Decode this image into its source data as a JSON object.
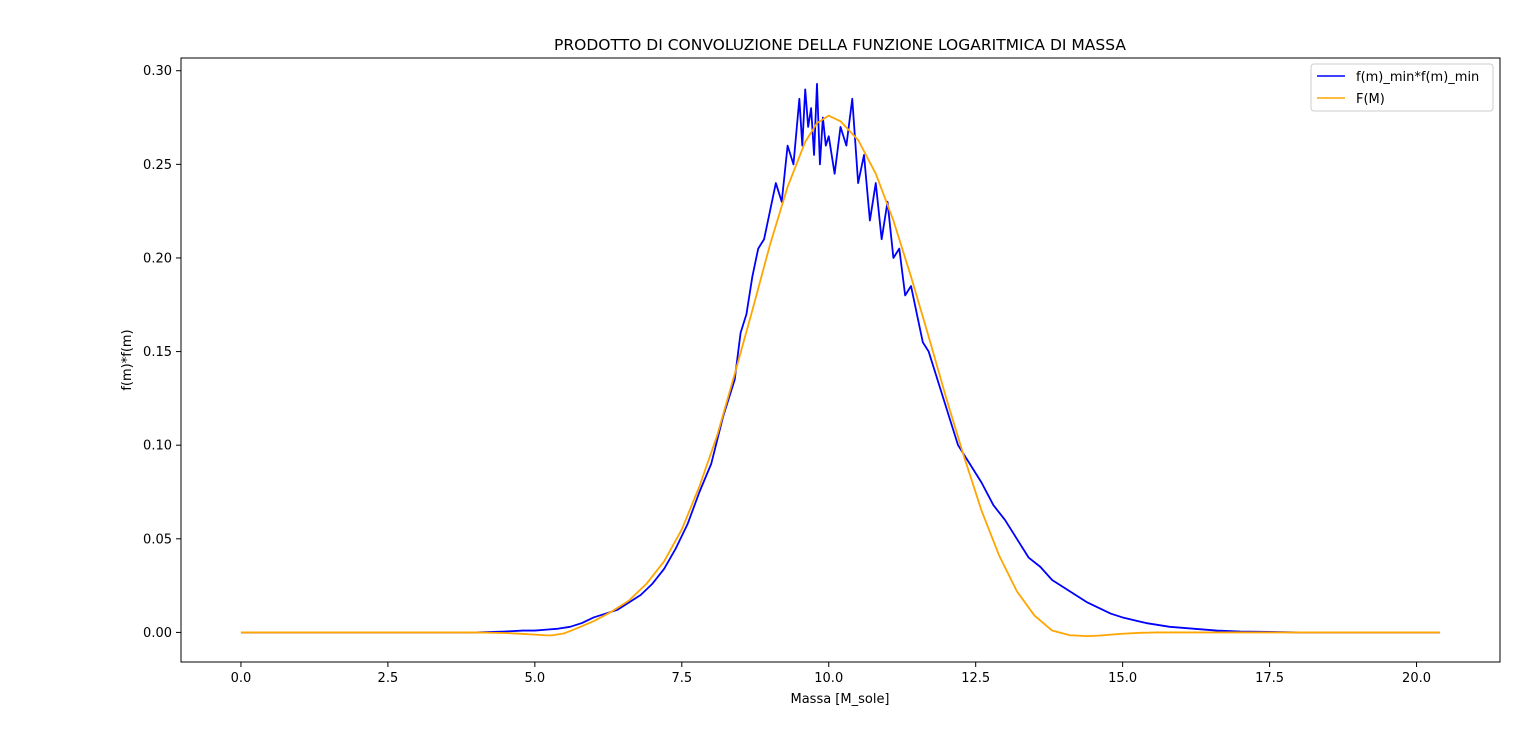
{
  "chart_data": {
    "type": "line",
    "title": "PRODOTTO DI CONVOLUZIONE DELLA FUNZIONE LOGARITMICA DI MASSA",
    "xlabel": "Massa [M_sole]",
    "ylabel": "f(m)*f(m)",
    "xlim": [
      -1.02,
      21.42
    ],
    "ylim": [
      -0.0158,
      0.3068
    ],
    "xticks": [
      0.0,
      2.5,
      5.0,
      7.5,
      10.0,
      12.5,
      15.0,
      17.5,
      20.0
    ],
    "xtick_labels": [
      "0.0",
      "2.5",
      "5.0",
      "7.5",
      "10.0",
      "12.5",
      "15.0",
      "17.5",
      "20.0"
    ],
    "yticks": [
      0.0,
      0.05,
      0.1,
      0.15,
      0.2,
      0.25,
      0.3
    ],
    "ytick_labels": [
      "0.00",
      "0.05",
      "0.10",
      "0.15",
      "0.20",
      "0.25",
      "0.30"
    ],
    "grid": false,
    "legend_position": "top-right",
    "series": [
      {
        "name": "f(m)_min*f(m)_min",
        "color": "#0000ff",
        "x": [
          0.0,
          4.0,
          4.5,
          4.8,
          5.0,
          5.2,
          5.4,
          5.6,
          5.8,
          6.0,
          6.2,
          6.4,
          6.6,
          6.8,
          7.0,
          7.2,
          7.4,
          7.6,
          7.8,
          8.0,
          8.2,
          8.4,
          8.5,
          8.6,
          8.7,
          8.8,
          8.9,
          9.0,
          9.1,
          9.2,
          9.3,
          9.4,
          9.5,
          9.55,
          9.6,
          9.65,
          9.7,
          9.75,
          9.8,
          9.85,
          9.9,
          9.95,
          10.0,
          10.1,
          10.2,
          10.3,
          10.4,
          10.5,
          10.6,
          10.7,
          10.8,
          10.9,
          11.0,
          11.1,
          11.2,
          11.3,
          11.4,
          11.5,
          11.6,
          11.7,
          11.8,
          11.9,
          12.0,
          12.1,
          12.2,
          12.4,
          12.6,
          12.8,
          13.0,
          13.2,
          13.4,
          13.6,
          13.8,
          14.0,
          14.2,
          14.4,
          14.6,
          14.8,
          15.0,
          15.4,
          15.8,
          16.2,
          16.6,
          17.0,
          17.5,
          18.0,
          19.0,
          20.4
        ],
        "y": [
          0.0,
          0.0,
          0.0005,
          0.001,
          0.001,
          0.0015,
          0.002,
          0.003,
          0.005,
          0.008,
          0.01,
          0.012,
          0.016,
          0.02,
          0.026,
          0.034,
          0.045,
          0.058,
          0.075,
          0.09,
          0.115,
          0.135,
          0.16,
          0.17,
          0.19,
          0.205,
          0.21,
          0.225,
          0.24,
          0.23,
          0.26,
          0.25,
          0.285,
          0.26,
          0.29,
          0.27,
          0.28,
          0.255,
          0.293,
          0.25,
          0.275,
          0.26,
          0.265,
          0.245,
          0.27,
          0.26,
          0.285,
          0.24,
          0.255,
          0.22,
          0.24,
          0.21,
          0.23,
          0.2,
          0.205,
          0.18,
          0.185,
          0.17,
          0.155,
          0.15,
          0.14,
          0.13,
          0.12,
          0.11,
          0.1,
          0.09,
          0.08,
          0.068,
          0.06,
          0.05,
          0.04,
          0.035,
          0.028,
          0.024,
          0.02,
          0.016,
          0.013,
          0.01,
          0.008,
          0.005,
          0.003,
          0.002,
          0.001,
          0.0005,
          0.0003,
          0.0,
          0.0,
          0.0
        ]
      },
      {
        "name": "F(M)",
        "color": "#ffa500",
        "x": [
          0.0,
          4.0,
          4.5,
          4.8,
          5.0,
          5.2,
          5.3,
          5.5,
          5.7,
          6.0,
          6.3,
          6.6,
          6.9,
          7.2,
          7.5,
          7.8,
          8.1,
          8.4,
          8.7,
          9.0,
          9.3,
          9.6,
          9.8,
          10.0,
          10.2,
          10.5,
          10.8,
          11.1,
          11.4,
          11.7,
          12.0,
          12.3,
          12.6,
          12.9,
          13.2,
          13.5,
          13.8,
          14.1,
          14.4,
          14.6,
          14.8,
          15.0,
          15.3,
          15.6,
          16.0,
          17.0,
          18.0,
          20.4
        ],
        "y": [
          0.0,
          0.0,
          -0.0003,
          -0.0008,
          -0.0012,
          -0.0016,
          -0.0015,
          -0.0005,
          0.002,
          0.006,
          0.011,
          0.017,
          0.026,
          0.038,
          0.055,
          0.078,
          0.105,
          0.138,
          0.172,
          0.207,
          0.238,
          0.262,
          0.272,
          0.276,
          0.273,
          0.263,
          0.245,
          0.22,
          0.19,
          0.158,
          0.125,
          0.094,
          0.065,
          0.041,
          0.022,
          0.009,
          0.001,
          -0.0015,
          -0.002,
          -0.0017,
          -0.0012,
          -0.0007,
          -0.0002,
          0.0,
          0.0,
          0.0,
          0.0,
          0.0
        ]
      }
    ]
  }
}
